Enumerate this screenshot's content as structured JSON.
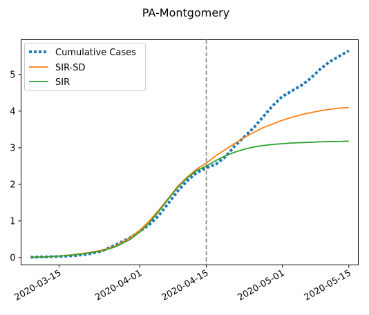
{
  "chart_data": {
    "type": "line",
    "title": "PA-Montgomery",
    "xlabel": "",
    "ylabel": "",
    "x_tick_labels": [
      "2020-03-15",
      "2020-04-01",
      "2020-04-15",
      "2020-05-01",
      "2020-05-15"
    ],
    "y_tick_labels": [
      "0",
      "1",
      "2",
      "3",
      "4",
      "5"
    ],
    "xlim": [
      "2020-03-07",
      "2020-05-17"
    ],
    "ylim": [
      -0.2,
      5.95
    ],
    "grid": false,
    "legend_position": "top-left",
    "vline": {
      "x": "2020-04-15",
      "style": "dashed",
      "color": "#808080"
    },
    "series": [
      {
        "name": "Cumulative Cases",
        "style": "dotted",
        "color": "#1f77b4",
        "points": [
          [
            "2020-03-09",
            0.01
          ],
          [
            "2020-03-12",
            0.02
          ],
          [
            "2020-03-15",
            0.03
          ],
          [
            "2020-03-18",
            0.05
          ],
          [
            "2020-03-21",
            0.09
          ],
          [
            "2020-03-24",
            0.18
          ],
          [
            "2020-03-27",
            0.35
          ],
          [
            "2020-03-30",
            0.55
          ],
          [
            "2020-04-01",
            0.72
          ],
          [
            "2020-04-03",
            0.9
          ],
          [
            "2020-04-05",
            1.15
          ],
          [
            "2020-04-07",
            1.48
          ],
          [
            "2020-04-09",
            1.82
          ],
          [
            "2020-04-11",
            2.1
          ],
          [
            "2020-04-13",
            2.32
          ],
          [
            "2020-04-15",
            2.45
          ],
          [
            "2020-04-17",
            2.55
          ],
          [
            "2020-04-19",
            2.75
          ],
          [
            "2020-04-21",
            3.05
          ],
          [
            "2020-04-23",
            3.3
          ],
          [
            "2020-04-25",
            3.55
          ],
          [
            "2020-04-27",
            3.85
          ],
          [
            "2020-04-29",
            4.15
          ],
          [
            "2020-05-01",
            4.4
          ],
          [
            "2020-05-03",
            4.55
          ],
          [
            "2020-05-05",
            4.7
          ],
          [
            "2020-05-07",
            4.9
          ],
          [
            "2020-05-09",
            5.15
          ],
          [
            "2020-05-11",
            5.35
          ],
          [
            "2020-05-13",
            5.5
          ],
          [
            "2020-05-15",
            5.65
          ]
        ]
      },
      {
        "name": "SIR-SD",
        "style": "solid",
        "color": "#ff7f0e",
        "points": [
          [
            "2020-03-09",
            0.01
          ],
          [
            "2020-03-12",
            0.02
          ],
          [
            "2020-03-15",
            0.04
          ],
          [
            "2020-03-18",
            0.08
          ],
          [
            "2020-03-21",
            0.13
          ],
          [
            "2020-03-24",
            0.2
          ],
          [
            "2020-03-27",
            0.32
          ],
          [
            "2020-03-30",
            0.55
          ],
          [
            "2020-04-01",
            0.75
          ],
          [
            "2020-04-03",
            1.0
          ],
          [
            "2020-04-05",
            1.3
          ],
          [
            "2020-04-07",
            1.62
          ],
          [
            "2020-04-09",
            1.95
          ],
          [
            "2020-04-11",
            2.2
          ],
          [
            "2020-04-13",
            2.42
          ],
          [
            "2020-04-15",
            2.58
          ],
          [
            "2020-04-17",
            2.78
          ],
          [
            "2020-04-19",
            2.95
          ],
          [
            "2020-04-21",
            3.12
          ],
          [
            "2020-04-23",
            3.28
          ],
          [
            "2020-04-25",
            3.42
          ],
          [
            "2020-04-27",
            3.55
          ],
          [
            "2020-04-29",
            3.65
          ],
          [
            "2020-05-01",
            3.75
          ],
          [
            "2020-05-03",
            3.83
          ],
          [
            "2020-05-05",
            3.9
          ],
          [
            "2020-05-07",
            3.96
          ],
          [
            "2020-05-09",
            4.01
          ],
          [
            "2020-05-11",
            4.05
          ],
          [
            "2020-05-13",
            4.08
          ],
          [
            "2020-05-15",
            4.1
          ]
        ]
      },
      {
        "name": "SIR",
        "style": "solid",
        "color": "#2ca02c",
        "points": [
          [
            "2020-03-09",
            0.01
          ],
          [
            "2020-03-12",
            0.02
          ],
          [
            "2020-03-15",
            0.04
          ],
          [
            "2020-03-18",
            0.07
          ],
          [
            "2020-03-21",
            0.12
          ],
          [
            "2020-03-24",
            0.18
          ],
          [
            "2020-03-27",
            0.3
          ],
          [
            "2020-03-30",
            0.5
          ],
          [
            "2020-04-01",
            0.7
          ],
          [
            "2020-04-03",
            0.95
          ],
          [
            "2020-04-05",
            1.26
          ],
          [
            "2020-04-07",
            1.6
          ],
          [
            "2020-04-09",
            1.92
          ],
          [
            "2020-04-11",
            2.18
          ],
          [
            "2020-04-13",
            2.38
          ],
          [
            "2020-04-15",
            2.5
          ],
          [
            "2020-04-17",
            2.65
          ],
          [
            "2020-04-19",
            2.78
          ],
          [
            "2020-04-21",
            2.88
          ],
          [
            "2020-04-23",
            2.96
          ],
          [
            "2020-04-25",
            3.02
          ],
          [
            "2020-04-27",
            3.06
          ],
          [
            "2020-04-29",
            3.09
          ],
          [
            "2020-05-01",
            3.11
          ],
          [
            "2020-05-03",
            3.13
          ],
          [
            "2020-05-05",
            3.14
          ],
          [
            "2020-05-07",
            3.15
          ],
          [
            "2020-05-09",
            3.16
          ],
          [
            "2020-05-11",
            3.17
          ],
          [
            "2020-05-13",
            3.17
          ],
          [
            "2020-05-15",
            3.18
          ]
        ]
      }
    ]
  }
}
